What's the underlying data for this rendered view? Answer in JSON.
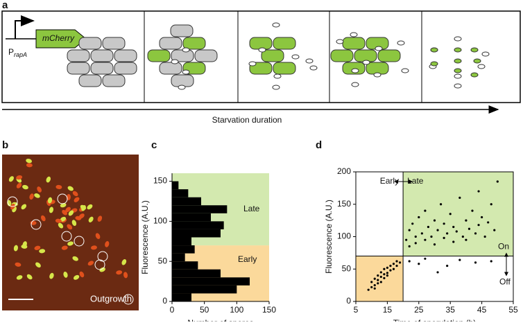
{
  "panels": [
    "a",
    "b",
    "c",
    "d"
  ],
  "diagram": {
    "gene": "mCherry",
    "promoter": "P",
    "promoter_sub": "rapA",
    "axis_label": "Starvation duration"
  },
  "image": {
    "label": "Outgrowth"
  },
  "chart_data": [
    {
      "type": "histogram",
      "orientation": "horizontal",
      "bins": [
        0,
        10,
        20,
        30,
        40,
        50,
        60,
        70,
        80,
        90,
        100,
        110,
        120,
        130,
        140,
        150
      ],
      "values": [
        30,
        100,
        120,
        75,
        40,
        20,
        35,
        30,
        75,
        80,
        60,
        85,
        45,
        25,
        10
      ],
      "color": "#000000",
      "xlabel": "Number of spores",
      "ylabel": "Fluorescence (A.U.)",
      "xlim": [
        0,
        150
      ],
      "ylim": [
        0,
        160
      ],
      "xticks": [
        0,
        50,
        100,
        150
      ],
      "yticks": [
        0,
        50,
        100,
        150
      ],
      "regions": [
        {
          "name": "Early",
          "ymin": 0,
          "ymax": 70,
          "color": "#fbd99b"
        },
        {
          "name": "Late",
          "ymin": 70,
          "ymax": 160,
          "color": "#d3e9af"
        }
      ]
    },
    {
      "type": "scatter",
      "x": [
        9,
        10,
        10,
        11,
        11,
        12,
        12,
        12,
        13,
        13,
        13,
        14,
        14,
        14,
        15,
        15,
        15,
        16,
        16,
        17,
        17,
        18,
        18,
        19,
        11,
        21,
        22,
        22,
        23,
        24,
        24,
        25,
        26,
        27,
        27,
        28,
        29,
        30,
        30,
        31,
        32,
        33,
        33,
        34,
        35,
        36,
        36,
        37,
        38,
        39,
        40,
        40,
        41,
        42,
        43,
        44,
        45,
        46,
        47,
        48,
        49,
        50,
        44,
        22,
        25,
        27,
        31,
        34,
        38,
        43,
        48
      ],
      "values": [
        18,
        22,
        30,
        25,
        35,
        28,
        40,
        33,
        38,
        45,
        30,
        42,
        50,
        36,
        44,
        52,
        40,
        48,
        55,
        50,
        58,
        55,
        62,
        60,
        20,
        95,
        110,
        85,
        120,
        100,
        90,
        130,
        105,
        95,
        140,
        115,
        100,
        125,
        88,
        110,
        150,
        98,
        120,
        105,
        135,
        92,
        115,
        108,
        160,
        100,
        125,
        95,
        112,
        140,
        105,
        118,
        130,
        100,
        122,
        150,
        110,
        185,
        170,
        62,
        58,
        66,
        45,
        55,
        64,
        60,
        62
      ],
      "color": "#000000",
      "xlabel": "Time of sporulation (h)",
      "ylabel": "Fluorescence (A.U.)",
      "xlim": [
        5,
        55
      ],
      "ylim": [
        0,
        200
      ],
      "xticks": [
        5,
        15,
        25,
        35,
        45,
        55
      ],
      "yticks": [
        0,
        50,
        100,
        150,
        200
      ],
      "threshold_x": 20,
      "threshold_y": 70,
      "regions": [
        {
          "name": "Early",
          "xmin": 5,
          "xmax": 20,
          "ymin": 0,
          "ymax": 70,
          "color": "#fbd99b"
        },
        {
          "name": "Late",
          "xmin": 20,
          "xmax": 55,
          "ymin": 70,
          "ymax": 200,
          "color": "#d3e9af"
        }
      ],
      "annotations": [
        "On",
        "Off"
      ]
    }
  ]
}
